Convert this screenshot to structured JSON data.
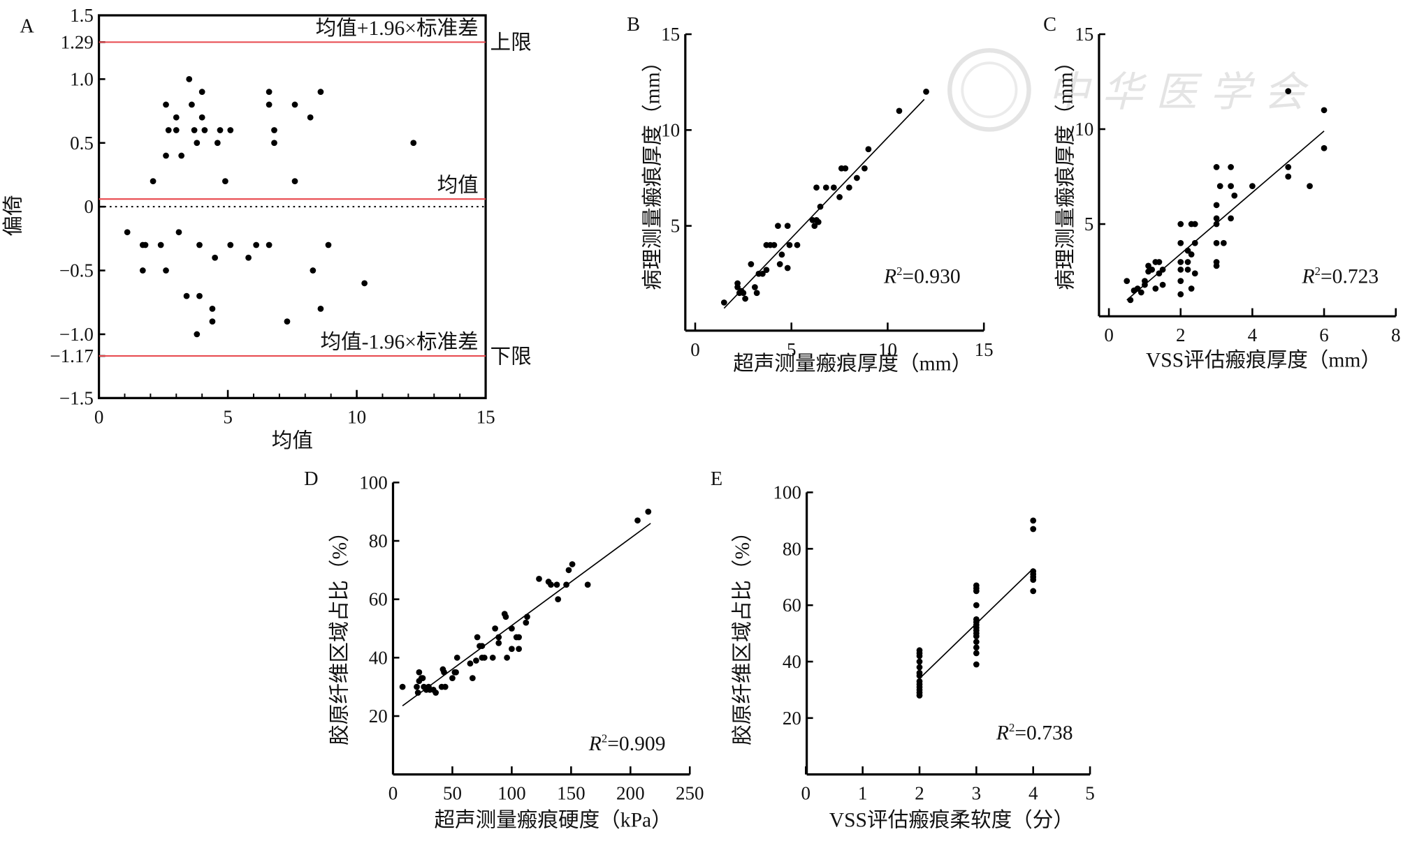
{
  "watermark": {
    "text": "中华医学会"
  },
  "chart_data": [
    {
      "panel": "A",
      "type": "scatter",
      "xlabel": "均值",
      "ylabel": "偏倚",
      "xlim": [
        0,
        15
      ],
      "ylim": [
        -1.5,
        1.5
      ],
      "xticks": [
        {
          "v": 0,
          "t": "0"
        },
        {
          "v": 5,
          "t": "5"
        },
        {
          "v": 10,
          "t": "10"
        },
        {
          "v": 15,
          "t": "15"
        }
      ],
      "yticks": [
        {
          "v": 1.5,
          "t": "1.5"
        },
        {
          "v": 1.29,
          "t": "1.29"
        },
        {
          "v": 1.0,
          "t": "1.0"
        },
        {
          "v": 0.5,
          "t": "0.5"
        },
        {
          "v": 0,
          "t": "0"
        },
        {
          "v": -0.5,
          "t": "−0.5"
        },
        {
          "v": -1.0,
          "t": "−1.0"
        },
        {
          "v": -1.17,
          "t": "−1.17"
        },
        {
          "v": -1.5,
          "t": "−1.5"
        }
      ],
      "reference_lines": [
        {
          "y": 1.29,
          "label": "均值+1.96×标准差",
          "side_label": "上限",
          "color": "#e8484d"
        },
        {
          "y": 0.06,
          "label": "均值",
          "side_label": "",
          "color": "#e8484d"
        },
        {
          "y": -1.17,
          "label": "均值-1.96×标准差",
          "side_label": "下限",
          "color": "#e8484d"
        }
      ],
      "zero_line": {
        "y": 0,
        "style": "dotted"
      },
      "points": [
        [
          3.5,
          1.0
        ],
        [
          2.6,
          0.8
        ],
        [
          3.6,
          0.8
        ],
        [
          4.0,
          0.9
        ],
        [
          2.7,
          0.6
        ],
        [
          3.0,
          0.6
        ],
        [
          3.0,
          0.7
        ],
        [
          3.7,
          0.6
        ],
        [
          4.0,
          0.7
        ],
        [
          4.1,
          0.6
        ],
        [
          4.7,
          0.6
        ],
        [
          5.1,
          0.6
        ],
        [
          3.8,
          0.5
        ],
        [
          4.6,
          0.5
        ],
        [
          2.6,
          0.4
        ],
        [
          3.2,
          0.4
        ],
        [
          2.1,
          0.2
        ],
        [
          4.9,
          0.2
        ],
        [
          6.6,
          0.9
        ],
        [
          6.6,
          0.8
        ],
        [
          6.8,
          0.6
        ],
        [
          6.8,
          0.5
        ],
        [
          7.6,
          0.8
        ],
        [
          8.2,
          0.7
        ],
        [
          8.6,
          0.9
        ],
        [
          7.6,
          0.2
        ],
        [
          12.2,
          0.5
        ],
        [
          1.1,
          -0.2
        ],
        [
          1.7,
          -0.3
        ],
        [
          1.8,
          -0.3
        ],
        [
          2.4,
          -0.3
        ],
        [
          3.1,
          -0.2
        ],
        [
          3.9,
          -0.3
        ],
        [
          5.1,
          -0.3
        ],
        [
          6.1,
          -0.3
        ],
        [
          6.6,
          -0.3
        ],
        [
          8.9,
          -0.3
        ],
        [
          4.5,
          -0.4
        ],
        [
          5.8,
          -0.4
        ],
        [
          1.7,
          -0.5
        ],
        [
          2.6,
          -0.5
        ],
        [
          8.3,
          -0.5
        ],
        [
          10.3,
          -0.6
        ],
        [
          3.4,
          -0.7
        ],
        [
          3.9,
          -0.7
        ],
        [
          4.4,
          -0.8
        ],
        [
          8.6,
          -0.8
        ],
        [
          4.4,
          -0.9
        ],
        [
          7.3,
          -0.9
        ],
        [
          3.8,
          -1.0
        ]
      ]
    },
    {
      "panel": "B",
      "type": "scatter",
      "xlabel": "超声测量瘢痕厚度（mm）",
      "ylabel": "病理测量瘢痕厚度（mm）",
      "xlim": [
        0,
        15
      ],
      "ylim": [
        0,
        15
      ],
      "xticks": [
        {
          "v": 0,
          "t": "0"
        },
        {
          "v": 5,
          "t": "5"
        },
        {
          "v": 10,
          "t": "10"
        },
        {
          "v": 15,
          "t": "15"
        }
      ],
      "yticks": [
        {
          "v": 5,
          "t": "5"
        },
        {
          "v": 10,
          "t": "10"
        },
        {
          "v": 15,
          "t": "15"
        }
      ],
      "r2": {
        "symbol": "R",
        "sup": "2",
        "value": "=0.930"
      },
      "fit_line": [
        [
          1.5,
          0.7
        ],
        [
          11.9,
          11.6
        ]
      ],
      "points": [
        [
          1.5,
          1.0
        ],
        [
          2.2,
          1.8
        ],
        [
          2.2,
          2.0
        ],
        [
          2.3,
          1.5
        ],
        [
          2.4,
          1.6
        ],
        [
          2.5,
          1.5
        ],
        [
          2.6,
          1.2
        ],
        [
          3.1,
          1.8
        ],
        [
          3.2,
          1.5
        ],
        [
          2.9,
          3.0
        ],
        [
          3.3,
          2.5
        ],
        [
          3.5,
          2.5
        ],
        [
          3.7,
          2.7
        ],
        [
          3.7,
          4.0
        ],
        [
          3.9,
          4.0
        ],
        [
          4.1,
          4.0
        ],
        [
          4.4,
          3.0
        ],
        [
          4.5,
          3.5
        ],
        [
          4.3,
          5.0
        ],
        [
          4.8,
          2.8
        ],
        [
          4.8,
          5.0
        ],
        [
          4.9,
          4.0
        ],
        [
          5.3,
          4.0
        ],
        [
          6.1,
          5.3
        ],
        [
          6.2,
          5.0
        ],
        [
          6.3,
          5.3
        ],
        [
          6.4,
          5.2
        ],
        [
          6.5,
          6.0
        ],
        [
          6.3,
          7.0
        ],
        [
          6.8,
          7.0
        ],
        [
          7.2,
          7.0
        ],
        [
          7.5,
          6.5
        ],
        [
          7.6,
          8.0
        ],
        [
          7.8,
          8.0
        ],
        [
          8.0,
          7.0
        ],
        [
          8.4,
          7.5
        ],
        [
          8.8,
          8.0
        ],
        [
          9.0,
          9.0
        ],
        [
          10.6,
          11.0
        ],
        [
          12.0,
          12.0
        ]
      ]
    },
    {
      "panel": "C",
      "type": "scatter",
      "xlabel": "VSS评估瘢痕厚度（mm）",
      "ylabel": "病理测量瘢痕厚度（mm）",
      "xlim": [
        0,
        8
      ],
      "ylim": [
        0,
        15
      ],
      "xticks": [
        {
          "v": 0,
          "t": "0"
        },
        {
          "v": 2,
          "t": "2"
        },
        {
          "v": 4,
          "t": "4"
        },
        {
          "v": 6,
          "t": "6"
        },
        {
          "v": 8,
          "t": "8"
        }
      ],
      "yticks": [
        {
          "v": 5,
          "t": "5"
        },
        {
          "v": 10,
          "t": "10"
        },
        {
          "v": 15,
          "t": "15"
        }
      ],
      "r2": {
        "symbol": "R",
        "sup": "2",
        "value": "=0.723"
      },
      "fit_line": [
        [
          0.5,
          1.0
        ],
        [
          6.0,
          9.9
        ]
      ],
      "points": [
        [
          0.5,
          2.0
        ],
        [
          0.6,
          1.0
        ],
        [
          0.7,
          1.5
        ],
        [
          0.8,
          1.6
        ],
        [
          0.9,
          1.4
        ],
        [
          1.0,
          1.8
        ],
        [
          1.0,
          2.0
        ],
        [
          1.1,
          2.5
        ],
        [
          1.1,
          2.8
        ],
        [
          1.2,
          2.6
        ],
        [
          1.3,
          3.0
        ],
        [
          1.3,
          1.6
        ],
        [
          1.4,
          3.0
        ],
        [
          1.4,
          2.4
        ],
        [
          1.5,
          1.8
        ],
        [
          1.5,
          2.6
        ],
        [
          2.0,
          5.0
        ],
        [
          2.0,
          4.0
        ],
        [
          2.0,
          3.0
        ],
        [
          2.0,
          2.6
        ],
        [
          2.0,
          2.0
        ],
        [
          2.0,
          1.3
        ],
        [
          2.2,
          3.6
        ],
        [
          2.2,
          3.0
        ],
        [
          2.2,
          2.6
        ],
        [
          2.3,
          5.0
        ],
        [
          2.3,
          3.4
        ],
        [
          2.3,
          1.6
        ],
        [
          2.4,
          5.0
        ],
        [
          2.4,
          4.0
        ],
        [
          2.4,
          2.4
        ],
        [
          3.0,
          8.0
        ],
        [
          3.0,
          6.0
        ],
        [
          3.0,
          5.3
        ],
        [
          3.0,
          5.0
        ],
        [
          3.0,
          4.0
        ],
        [
          3.0,
          3.0
        ],
        [
          3.0,
          2.8
        ],
        [
          3.1,
          7.0
        ],
        [
          3.2,
          4.0
        ],
        [
          3.4,
          8.0
        ],
        [
          3.4,
          7.0
        ],
        [
          3.4,
          5.3
        ],
        [
          3.5,
          6.5
        ],
        [
          4.0,
          7.0
        ],
        [
          5.0,
          8.0
        ],
        [
          5.0,
          7.5
        ],
        [
          5.0,
          12.0
        ],
        [
          5.6,
          7.0
        ],
        [
          6.0,
          11.0
        ],
        [
          6.0,
          9.0
        ]
      ]
    },
    {
      "panel": "D",
      "type": "scatter",
      "xlabel": "超声测量瘢痕硬度（kPa）",
      "ylabel": "胶原纤维区域占比（%）",
      "xlim": [
        0,
        250
      ],
      "ylim": [
        0,
        100
      ],
      "xticks": [
        {
          "v": 0,
          "t": "0"
        },
        {
          "v": 50,
          "t": "50"
        },
        {
          "v": 100,
          "t": "100"
        },
        {
          "v": 150,
          "t": "150"
        },
        {
          "v": 200,
          "t": "200"
        },
        {
          "v": 250,
          "t": "250"
        }
      ],
      "yticks": [
        {
          "v": 20,
          "t": "20"
        },
        {
          "v": 40,
          "t": "40"
        },
        {
          "v": 60,
          "t": "60"
        },
        {
          "v": 80,
          "t": "80"
        },
        {
          "v": 100,
          "t": "100"
        }
      ],
      "r2": {
        "symbol": "R",
        "sup": "2",
        "value": "=0.909"
      },
      "fit_line": [
        [
          8,
          23.5
        ],
        [
          217,
          86
        ]
      ],
      "points": [
        [
          8,
          30
        ],
        [
          20,
          30
        ],
        [
          21,
          28
        ],
        [
          22,
          32
        ],
        [
          22,
          35
        ],
        [
          24,
          33
        ],
        [
          25,
          33
        ],
        [
          26,
          30
        ],
        [
          28,
          29
        ],
        [
          30,
          30
        ],
        [
          31,
          29
        ],
        [
          34,
          29
        ],
        [
          36,
          28
        ],
        [
          41,
          30
        ],
        [
          42,
          36
        ],
        [
          43,
          35
        ],
        [
          44,
          30
        ],
        [
          50,
          33
        ],
        [
          52,
          35
        ],
        [
          53,
          35
        ],
        [
          54,
          40
        ],
        [
          65,
          38
        ],
        [
          67,
          33
        ],
        [
          70,
          39
        ],
        [
          71,
          47
        ],
        [
          73,
          44
        ],
        [
          75,
          44
        ],
        [
          75,
          40
        ],
        [
          77,
          40
        ],
        [
          84,
          40
        ],
        [
          86,
          50
        ],
        [
          89,
          47
        ],
        [
          89,
          45
        ],
        [
          94,
          55
        ],
        [
          95,
          54
        ],
        [
          96,
          40
        ],
        [
          100,
          43
        ],
        [
          100,
          50
        ],
        [
          104,
          47
        ],
        [
          106,
          47
        ],
        [
          106,
          43
        ],
        [
          112,
          52
        ],
        [
          113,
          54
        ],
        [
          123,
          67
        ],
        [
          131,
          66
        ],
        [
          133,
          65
        ],
        [
          138,
          65
        ],
        [
          139,
          60
        ],
        [
          146,
          65
        ],
        [
          148,
          70
        ],
        [
          151,
          72
        ],
        [
          164,
          65
        ],
        [
          206,
          87
        ],
        [
          215,
          90
        ]
      ]
    },
    {
      "panel": "E",
      "type": "scatter",
      "xlabel": "VSS评估瘢痕柔软度（分）",
      "ylabel": "胶原纤维区域占比（%）",
      "xlim": [
        0,
        5
      ],
      "ylim": [
        0,
        100
      ],
      "xticks": [
        {
          "v": 0,
          "t": "0"
        },
        {
          "v": 1,
          "t": "1"
        },
        {
          "v": 2,
          "t": "2"
        },
        {
          "v": 3,
          "t": "3"
        },
        {
          "v": 4,
          "t": "4"
        },
        {
          "v": 5,
          "t": "5"
        }
      ],
      "yticks": [
        {
          "v": 20,
          "t": "20"
        },
        {
          "v": 40,
          "t": "40"
        },
        {
          "v": 60,
          "t": "60"
        },
        {
          "v": 80,
          "t": "80"
        },
        {
          "v": 100,
          "t": "100"
        }
      ],
      "r2": {
        "symbol": "R",
        "sup": "2",
        "value": "=0.738"
      },
      "fit_line": [
        [
          2,
          34
        ],
        [
          4,
          73
        ]
      ],
      "points": [
        [
          2,
          28
        ],
        [
          2,
          29
        ],
        [
          2,
          30
        ],
        [
          2,
          31
        ],
        [
          2,
          32
        ],
        [
          2,
          33
        ],
        [
          2,
          35
        ],
        [
          2,
          36
        ],
        [
          2,
          38
        ],
        [
          2,
          40
        ],
        [
          2,
          42
        ],
        [
          2,
          43
        ],
        [
          2,
          44
        ],
        [
          3,
          39
        ],
        [
          3,
          43
        ],
        [
          3,
          45
        ],
        [
          3,
          47
        ],
        [
          3,
          49
        ],
        [
          3,
          50
        ],
        [
          3,
          51
        ],
        [
          3,
          52
        ],
        [
          3,
          53
        ],
        [
          3,
          54
        ],
        [
          3,
          55
        ],
        [
          3,
          60
        ],
        [
          3,
          65
        ],
        [
          3,
          66
        ],
        [
          3,
          67
        ],
        [
          4,
          65
        ],
        [
          4,
          69
        ],
        [
          4,
          70
        ],
        [
          4,
          71
        ],
        [
          4,
          72
        ],
        [
          4,
          87
        ],
        [
          4,
          90
        ]
      ]
    }
  ]
}
